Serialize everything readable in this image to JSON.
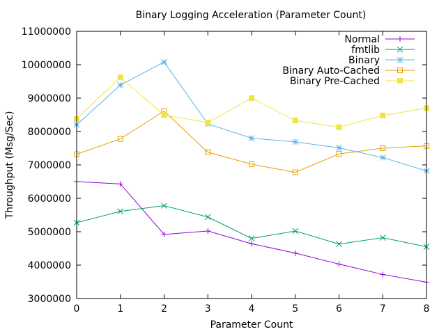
{
  "chart_data": {
    "type": "line",
    "title": "Binary Logging Acceleration (Parameter Count)",
    "xlabel": "Parameter Count",
    "ylabel": "Throughput (Msg/Sec)",
    "x": [
      0,
      1,
      2,
      3,
      4,
      5,
      6,
      7,
      8
    ],
    "xlim": [
      0,
      8
    ],
    "ylim": [
      3000000,
      11000000
    ],
    "x_ticks": [
      "0",
      "1",
      "2",
      "3",
      "4",
      "5",
      "6",
      "7",
      "8"
    ],
    "y_ticks": [
      "3000000",
      "4000000",
      "5000000",
      "6000000",
      "7000000",
      "8000000",
      "9000000",
      "10000000",
      "11000000"
    ],
    "grid": false,
    "legend_position": "top-right",
    "series": [
      {
        "name": "Normal",
        "color": "#9400d3",
        "marker": "plus",
        "values": [
          6500000,
          6430000,
          4920000,
          5020000,
          4640000,
          4360000,
          4030000,
          3720000,
          3490000
        ]
      },
      {
        "name": "fmtlib",
        "color": "#009e73",
        "marker": "cross",
        "values": [
          5270000,
          5610000,
          5780000,
          5440000,
          4800000,
          5020000,
          4630000,
          4820000,
          4550000
        ]
      },
      {
        "name": "Binary",
        "color": "#56b4e9",
        "marker": "star",
        "values": [
          8200000,
          9390000,
          10080000,
          8230000,
          7800000,
          7690000,
          7510000,
          7220000,
          6820000
        ]
      },
      {
        "name": "Binary Auto-Cached",
        "color": "#e69f00",
        "marker": "open-square",
        "values": [
          7320000,
          7780000,
          8610000,
          7380000,
          7020000,
          6780000,
          7330000,
          7500000,
          7570000
        ]
      },
      {
        "name": "Binary Pre-Cached",
        "color": "#f0e442",
        "marker": "filled-square",
        "values": [
          8380000,
          9620000,
          8490000,
          8270000,
          9000000,
          8330000,
          8130000,
          8480000,
          8700000
        ]
      }
    ]
  }
}
